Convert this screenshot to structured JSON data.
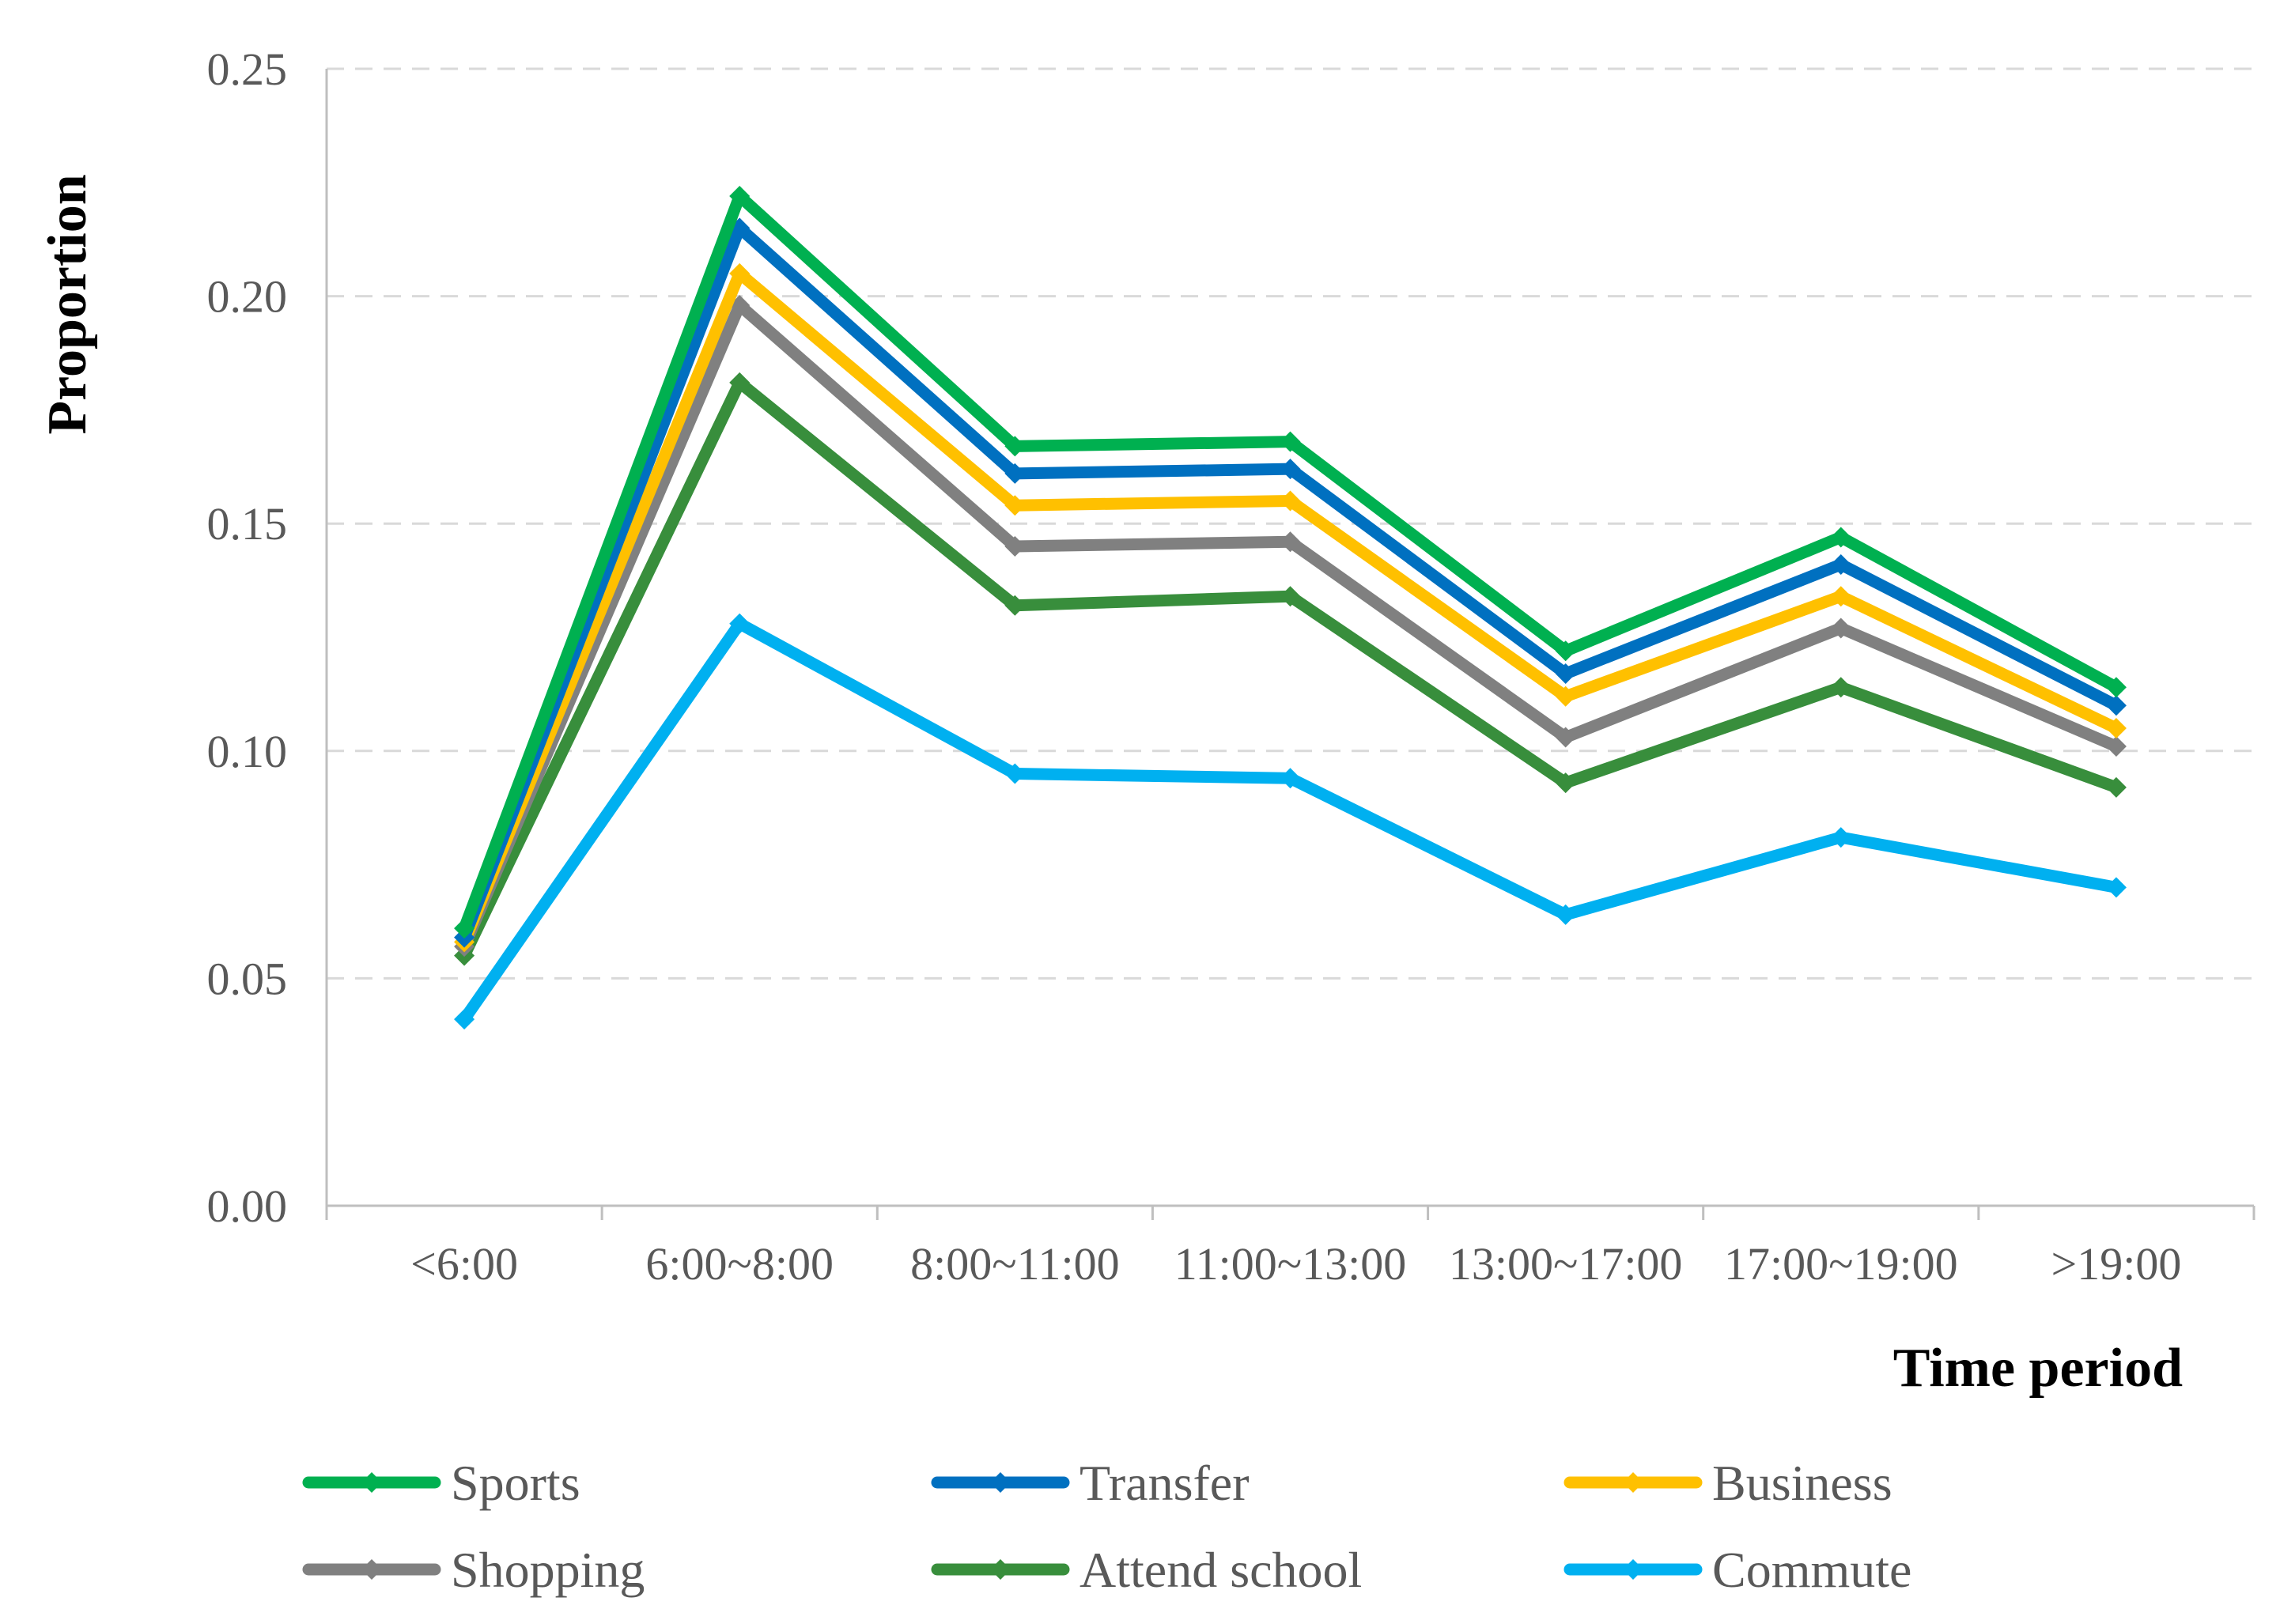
{
  "chart_data": {
    "type": "line",
    "xlabel": "Time period",
    "ylabel": "Proportion",
    "categories": [
      "<6:00",
      "6:00~8:00",
      "8:00~11:00",
      "11:00~13:00",
      "13:00~17:00",
      "17:00~19:00",
      ">19:00"
    ],
    "ylim": [
      0,
      0.25
    ],
    "yticks": [
      "0.00",
      "0.05",
      "0.10",
      "0.15",
      "0.20",
      "0.25"
    ],
    "grid": "horizontal dashed",
    "legend_position": "bottom",
    "series": [
      {
        "name": "Sports",
        "color": "#00b050",
        "values": [
          0.061,
          0.222,
          0.167,
          0.168,
          0.122,
          0.147,
          0.114
        ]
      },
      {
        "name": "Transfer",
        "color": "#0070c0",
        "values": [
          0.059,
          0.215,
          0.161,
          0.162,
          0.117,
          0.141,
          0.11
        ]
      },
      {
        "name": "Business",
        "color": "#ffc000",
        "values": [
          0.058,
          0.205,
          0.154,
          0.155,
          0.112,
          0.134,
          0.105
        ]
      },
      {
        "name": "Shopping",
        "color": "#808080",
        "values": [
          0.057,
          0.198,
          0.145,
          0.146,
          0.103,
          0.127,
          0.101
        ]
      },
      {
        "name": "Attend school",
        "color": "#388e3c",
        "values": [
          0.055,
          0.181,
          0.132,
          0.134,
          0.093,
          0.114,
          0.092
        ]
      },
      {
        "name": "Commute",
        "color": "#00b0f0",
        "values": [
          0.041,
          0.128,
          0.095,
          0.094,
          0.064,
          0.081,
          0.07
        ]
      }
    ]
  }
}
